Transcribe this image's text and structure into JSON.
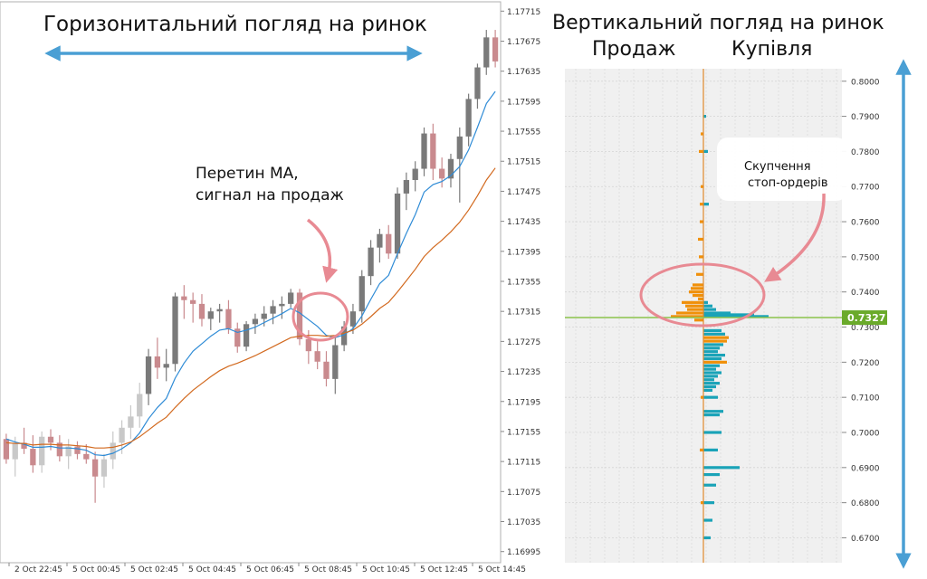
{
  "left_panel": {
    "title": "Горизонитальний погляд на ринок",
    "annotation_line1": "Перетин MA,",
    "annotation_line2": "сигнал на продаж"
  },
  "right_panel": {
    "title": "Вертикальний погляд на ринок",
    "sell_label": "Продаж",
    "buy_label": "Купівля",
    "annotation_line1": "Скупчення",
    "annotation_line2": "стоп-ордерів",
    "current_price_label": "0.7327"
  },
  "colors": {
    "arrow_blue": "#4a9fd4",
    "bull_candle": "#7a7a7a",
    "bear_candle": "#c98a8e",
    "bull_candle_light": "#c8c8c8",
    "ma_fast": "#2e8bd6",
    "ma_slow": "#d2691e",
    "annotation_pink": "#e88a93",
    "sell_bar": "#f0900a",
    "buy_bar": "#1aa3b8",
    "price_line": "#8bc34a"
  },
  "chart_data": [
    {
      "type": "candlestick",
      "y_ticks": [
        "1.17715",
        "1.17675",
        "1.17635",
        "1.17595",
        "1.17555",
        "1.17515",
        "1.17475",
        "1.17435",
        "1.17395",
        "1.17355",
        "1.17315",
        "1.17275",
        "1.17235",
        "1.17195",
        "1.17155",
        "1.17115",
        "1.17075",
        "1.17035",
        "1.16995"
      ],
      "ylim": [
        1.16985,
        1.17725
      ],
      "x_ticks": [
        "2 Oct 22:45",
        "5 Oct 00:45",
        "5 Oct 02:45",
        "5 Oct 04:45",
        "5 Oct 06:45",
        "5 Oct 08:45",
        "5 Oct 10:45",
        "5 Oct 12:45",
        "5 Oct 14:45"
      ],
      "candles": [
        [
          1.17145,
          1.17152,
          1.17112,
          1.17118
        ],
        [
          1.17118,
          1.17148,
          1.17095,
          1.1714
        ],
        [
          1.1714,
          1.1716,
          1.17125,
          1.17132
        ],
        [
          1.17132,
          1.1715,
          1.171,
          1.1711
        ],
        [
          1.1711,
          1.17155,
          1.171,
          1.17148
        ],
        [
          1.17148,
          1.17158,
          1.1713,
          1.1714
        ],
        [
          1.1714,
          1.1715,
          1.17115,
          1.17122
        ],
        [
          1.17122,
          1.17145,
          1.17105,
          1.17135
        ],
        [
          1.17135,
          1.17142,
          1.17118,
          1.17125
        ],
        [
          1.17125,
          1.17138,
          1.17112,
          1.17118
        ],
        [
          1.17118,
          1.17128,
          1.1706,
          1.17095
        ],
        [
          1.17095,
          1.17125,
          1.1708,
          1.17118
        ],
        [
          1.17118,
          1.17155,
          1.17105,
          1.1714
        ],
        [
          1.1714,
          1.1717,
          1.17125,
          1.1716
        ],
        [
          1.1716,
          1.1719,
          1.17145,
          1.17175
        ],
        [
          1.17175,
          1.1722,
          1.1716,
          1.17205
        ],
        [
          1.17205,
          1.17265,
          1.1719,
          1.17255
        ],
        [
          1.17255,
          1.1728,
          1.17225,
          1.1724
        ],
        [
          1.1724,
          1.17265,
          1.17222,
          1.17245
        ],
        [
          1.17245,
          1.1734,
          1.17235,
          1.17335
        ],
        [
          1.17335,
          1.1735,
          1.17305,
          1.1733
        ],
        [
          1.1733,
          1.1734,
          1.173,
          1.17325
        ],
        [
          1.17325,
          1.17338,
          1.17295,
          1.17305
        ],
        [
          1.17305,
          1.1732,
          1.1729,
          1.17315
        ],
        [
          1.17315,
          1.17325,
          1.173,
          1.17318
        ],
        [
          1.17318,
          1.1733,
          1.17285,
          1.17292
        ],
        [
          1.17292,
          1.173,
          1.1726,
          1.17268
        ],
        [
          1.17268,
          1.17302,
          1.17262,
          1.17298
        ],
        [
          1.17298,
          1.17312,
          1.17285,
          1.17305
        ],
        [
          1.17305,
          1.17322,
          1.17295,
          1.17312
        ],
        [
          1.17312,
          1.1733,
          1.17298,
          1.17322
        ],
        [
          1.17322,
          1.17335,
          1.17305,
          1.17325
        ],
        [
          1.17325,
          1.17345,
          1.1732,
          1.1734
        ],
        [
          1.1734,
          1.17345,
          1.1727,
          1.17278
        ],
        [
          1.17278,
          1.1729,
          1.17245,
          1.17262
        ],
        [
          1.17262,
          1.17275,
          1.17238,
          1.17248
        ],
        [
          1.17248,
          1.17262,
          1.17215,
          1.17225
        ],
        [
          1.17225,
          1.1728,
          1.17205,
          1.1727
        ],
        [
          1.1727,
          1.17302,
          1.17262,
          1.17295
        ],
        [
          1.17295,
          1.17325,
          1.17285,
          1.17315
        ],
        [
          1.17315,
          1.1737,
          1.173,
          1.17362
        ],
        [
          1.17362,
          1.1741,
          1.1735,
          1.174
        ],
        [
          1.174,
          1.17425,
          1.1738,
          1.17418
        ],
        [
          1.17418,
          1.1743,
          1.17385,
          1.17392
        ],
        [
          1.17392,
          1.1748,
          1.17385,
          1.17472
        ],
        [
          1.17472,
          1.175,
          1.1745,
          1.1749
        ],
        [
          1.1749,
          1.17515,
          1.17475,
          1.17505
        ],
        [
          1.17505,
          1.1756,
          1.17495,
          1.17552
        ],
        [
          1.17552,
          1.17565,
          1.1749,
          1.17505
        ],
        [
          1.17505,
          1.1752,
          1.1748,
          1.17492
        ],
        [
          1.17492,
          1.17525,
          1.1748,
          1.17518
        ],
        [
          1.17518,
          1.1756,
          1.1746,
          1.17548
        ],
        [
          1.17548,
          1.17605,
          1.17535,
          1.17598
        ],
        [
          1.17598,
          1.17645,
          1.17585,
          1.1764
        ],
        [
          1.1764,
          1.1769,
          1.1763,
          1.1768
        ],
        [
          1.1768,
          1.1769,
          1.1764,
          1.17648
        ]
      ],
      "ma_fast": [
        1.17145,
        1.17141,
        1.17138,
        1.17134,
        1.17134,
        1.17135,
        1.17133,
        1.17133,
        1.17132,
        1.1713,
        1.17124,
        1.17123,
        1.17126,
        1.17132,
        1.1714,
        1.17153,
        1.17172,
        1.17187,
        1.17199,
        1.17226,
        1.17246,
        1.17262,
        1.17272,
        1.17282,
        1.1729,
        1.17292,
        1.17287,
        1.1729,
        1.17294,
        1.173,
        1.17306,
        1.17312,
        1.17319,
        1.17313,
        1.17304,
        1.17295,
        1.17283,
        1.1728,
        1.17284,
        1.17292,
        1.17309,
        1.17331,
        1.17352,
        1.17363,
        1.17392,
        1.17419,
        1.17444,
        1.17474,
        1.17484,
        1.17488,
        1.17496,
        1.17508,
        1.1753,
        1.1756,
        1.17592,
        1.17608
      ],
      "ma_slow": [
        1.1714,
        1.17139,
        1.17139,
        1.17137,
        1.17138,
        1.17138,
        1.17137,
        1.17137,
        1.17136,
        1.17135,
        1.17133,
        1.17133,
        1.17134,
        1.17137,
        1.17141,
        1.17148,
        1.17157,
        1.17166,
        1.17174,
        1.17187,
        1.17199,
        1.1721,
        1.17219,
        1.17228,
        1.17236,
        1.17242,
        1.17246,
        1.17251,
        1.17256,
        1.17262,
        1.17268,
        1.17274,
        1.1728,
        1.17282,
        1.17283,
        1.17283,
        1.17282,
        1.17283,
        1.17286,
        1.1729,
        1.17298,
        1.17308,
        1.17319,
        1.17327,
        1.17341,
        1.17356,
        1.17371,
        1.17388,
        1.174,
        1.1741,
        1.17421,
        1.17434,
        1.1745,
        1.17469,
        1.1749,
        1.17506
      ]
    },
    {
      "type": "bar",
      "orientation": "horizontal",
      "y_ticks": [
        "0.8000",
        "0.7900",
        "0.7800",
        "0.7700",
        "0.7600",
        "0.7500",
        "0.7400",
        "0.7300",
        "0.7200",
        "0.7100",
        "0.7000",
        "0.6900",
        "0.6800",
        "0.6700"
      ],
      "ylim": [
        0.666,
        0.802
      ],
      "current_price": 0.7327,
      "series": [
        {
          "name": "Продаж",
          "values": [
            [
              0.74,
              16
            ],
            [
              0.739,
              12
            ],
            [
              0.738,
              6
            ],
            [
              0.737,
              24
            ],
            [
              0.736,
              20
            ],
            [
              0.735,
              18
            ],
            [
              0.734,
              30
            ],
            [
              0.733,
              36
            ],
            [
              0.732,
              10
            ],
            [
              0.75,
              5
            ],
            [
              0.76,
              4
            ],
            [
              0.77,
              3
            ],
            [
              0.78,
              5
            ],
            [
              0.785,
              3
            ],
            [
              0.755,
              6
            ],
            [
              0.765,
              4
            ],
            [
              0.745,
              8
            ],
            [
              0.742,
              12
            ],
            [
              0.741,
              14
            ],
            [
              0.71,
              3
            ],
            [
              0.695,
              4
            ],
            [
              0.68,
              3
            ]
          ]
        },
        {
          "name": "Купівля",
          "values": [
            [
              0.734,
              30
            ],
            [
              0.7335,
              56
            ],
            [
              0.733,
              72
            ],
            [
              0.735,
              14
            ],
            [
              0.736,
              10
            ],
            [
              0.737,
              5
            ],
            [
              0.729,
              20
            ],
            [
              0.728,
              24
            ],
            [
              0.727,
              28
            ],
            [
              0.726,
              26
            ],
            [
              0.725,
              22
            ],
            [
              0.724,
              18
            ],
            [
              0.723,
              16
            ],
            [
              0.722,
              24
            ],
            [
              0.721,
              20
            ],
            [
              0.72,
              26
            ],
            [
              0.719,
              18
            ],
            [
              0.718,
              14
            ],
            [
              0.717,
              20
            ],
            [
              0.716,
              16
            ],
            [
              0.715,
              12
            ],
            [
              0.714,
              18
            ],
            [
              0.713,
              14
            ],
            [
              0.712,
              10
            ],
            [
              0.71,
              16
            ],
            [
              0.706,
              22
            ],
            [
              0.705,
              18
            ],
            [
              0.7,
              20
            ],
            [
              0.695,
              16
            ],
            [
              0.69,
              40
            ],
            [
              0.688,
              18
            ],
            [
              0.685,
              14
            ],
            [
              0.68,
              12
            ],
            [
              0.675,
              10
            ],
            [
              0.67,
              8
            ],
            [
              0.765,
              6
            ],
            [
              0.78,
              5
            ],
            [
              0.79,
              3
            ]
          ]
        }
      ]
    }
  ]
}
